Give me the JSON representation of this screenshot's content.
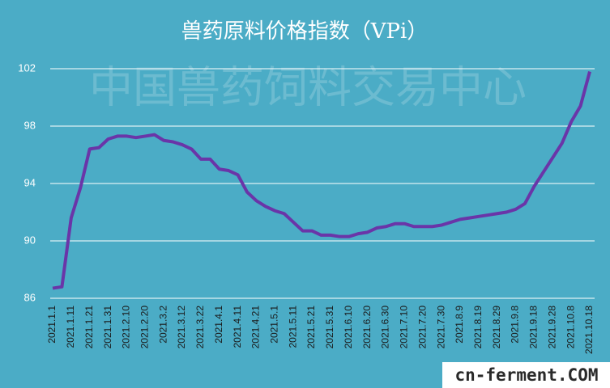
{
  "chart_data": {
    "type": "line",
    "title": "兽药原料价格指数（VPi）",
    "watermark": "中国兽药饲料交易中心",
    "logo": "cn-ferment.COM",
    "categories": [
      "2021.1.1",
      null,
      "2021.1.11",
      null,
      "2021.1.21",
      null,
      "2021.1.31",
      null,
      "2021.2.10",
      null,
      "2021.2.20",
      null,
      "2021.3.2",
      null,
      "2021.3.12",
      null,
      "2021.3.22",
      null,
      "2021.4.1",
      null,
      "2021.4.11",
      null,
      "2021.4.21",
      null,
      "2021.5.1",
      null,
      "2021.5.11",
      null,
      "2021.5.21",
      null,
      "2021.5.31",
      null,
      "2021.6.10",
      null,
      "2021.6.20",
      null,
      "2021.6.30",
      null,
      "2021.7.10",
      null,
      "2021.7.20",
      null,
      "2021.7.30",
      null,
      "2021.8.9",
      null,
      "2021.8.19",
      null,
      "2021.8.29",
      null,
      "2021.9.8",
      null,
      "2021.9.18",
      null,
      "2021.9.28",
      null,
      "2021.10.8",
      null,
      "2021.10.18"
    ],
    "series": [
      {
        "name": "VPi",
        "color": "#6a35a8",
        "values": [
          86.7,
          86.8,
          91.6,
          93.7,
          96.4,
          96.5,
          97.1,
          97.3,
          97.3,
          97.2,
          97.3,
          97.4,
          97.0,
          96.9,
          96.7,
          96.4,
          95.7,
          95.7,
          95.0,
          94.9,
          94.6,
          93.4,
          92.8,
          92.4,
          92.1,
          91.9,
          91.3,
          90.7,
          90.7,
          90.4,
          90.4,
          90.3,
          90.3,
          90.5,
          90.6,
          90.9,
          91.0,
          91.2,
          91.2,
          91.0,
          91.0,
          91.0,
          91.1,
          91.3,
          91.5,
          91.6,
          91.7,
          91.8,
          91.9,
          92.0,
          92.2,
          92.6,
          93.8,
          94.8,
          95.8,
          96.8,
          98.3,
          99.4,
          101.8
        ]
      }
    ],
    "ylim": [
      86,
      102
    ],
    "yticks": [
      86,
      90,
      94,
      98,
      102
    ],
    "grid": true
  }
}
